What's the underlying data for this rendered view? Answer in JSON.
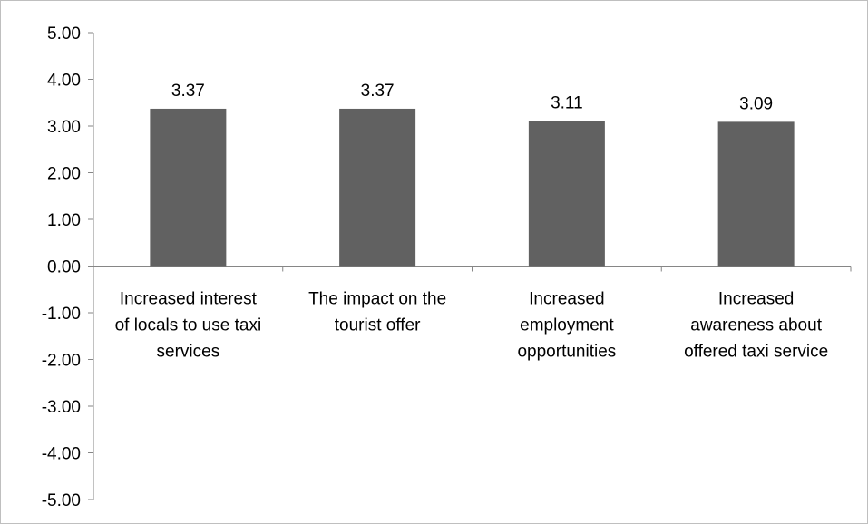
{
  "chart_data": {
    "type": "bar",
    "title": "",
    "xlabel": "",
    "ylabel": "",
    "categories": [
      [
        "Increased interest",
        "of locals to use taxi",
        "services"
      ],
      [
        "The impact on the",
        "tourist offer"
      ],
      [
        "Increased",
        "employment",
        "opportunities"
      ],
      [
        "Increased",
        "awareness about",
        "offered taxi service"
      ]
    ],
    "values": [
      3.37,
      3.37,
      3.11,
      3.09
    ],
    "value_labels": [
      "3.37",
      "3.37",
      "3.11",
      "3.09"
    ],
    "ylim": [
      -5,
      5
    ],
    "y_ticks": [
      "5.00",
      "4.00",
      "3.00",
      "2.00",
      "1.00",
      "0.00",
      "-1.00",
      "-2.00",
      "-3.00",
      "-4.00",
      "-5.00"
    ],
    "y_tick_values": [
      5,
      4,
      3,
      2,
      1,
      0,
      -1,
      -2,
      -3,
      -4,
      -5
    ],
    "grid": false,
    "legend": "none",
    "bar_color": "#616161",
    "axis_color": "#868686"
  }
}
